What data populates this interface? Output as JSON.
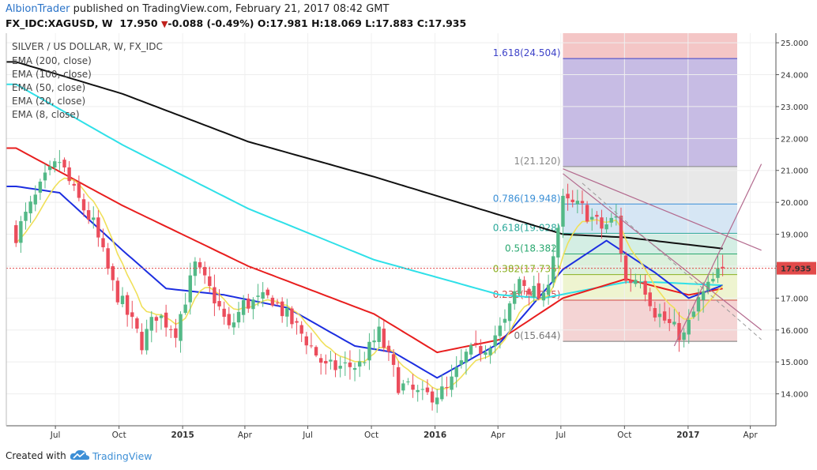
{
  "header": {
    "author": "AlbionTrader",
    "published_text": " published on TradingView.com, February 21, 2017 08:42 GMT",
    "symbol": "FX_IDC:XAGUSD, W",
    "last": "17.950",
    "change_arrow": "▼",
    "change": "-0.088 (-0.49%)",
    "o_label": "O:",
    "o": "17.981",
    "h_label": "H:",
    "h": "18.069",
    "l_label": "L:",
    "l": "17.883",
    "c_label": "C:",
    "c": "17.935"
  },
  "footer": {
    "created_with": "Created with",
    "brand": "TradingView"
  },
  "colors": {
    "up": "#53b987",
    "down": "#eb4d5c",
    "ema200": "#111111",
    "ema100": "#2fe0e8",
    "ema50": "#e81e1e",
    "ema20": "#1c2ee0",
    "ema8": "#f0e05a",
    "trend": "#b36a8e",
    "price_tag": "#e24a4a"
  },
  "chart_data": {
    "type": "candlestick",
    "title": "SILVER / US DOLLAR, W, FX_IDC",
    "legend": [
      "EMA (200, close)",
      "EMA (100, close)",
      "EMA (50, close)",
      "EMA (20, close)",
      "EMA (8, close)"
    ],
    "x_ticks": [
      "Jul",
      "Oct",
      "2015",
      "Apr",
      "Jul",
      "Oct",
      "2016",
      "Apr",
      "Jul",
      "Oct",
      "2017",
      "Apr"
    ],
    "y_ticks": [
      "14.000",
      "15.000",
      "16.000",
      "17.000",
      "18.000",
      "19.000",
      "20.000",
      "21.000",
      "22.000",
      "23.000",
      "24.000",
      "25.000"
    ],
    "ylim": [
      13.0,
      25.3
    ],
    "last_price": "17.935",
    "price_knots": [
      [
        "2014-05-05",
        19.0
      ],
      [
        "2014-06-16",
        20.7
      ],
      [
        "2014-07-07",
        21.3
      ],
      [
        "2014-07-28",
        20.3
      ],
      [
        "2014-08-25",
        19.3
      ],
      [
        "2014-09-22",
        17.4
      ],
      [
        "2014-11-03",
        15.6
      ],
      [
        "2014-11-24",
        16.5
      ],
      [
        "2014-12-22",
        16.0
      ],
      [
        "2015-01-19",
        18.0
      ],
      [
        "2015-02-16",
        17.0
      ],
      [
        "2015-03-09",
        16.0
      ],
      [
        "2015-03-30",
        16.8
      ],
      [
        "2015-05-11",
        17.0
      ],
      [
        "2015-05-25",
        16.6
      ],
      [
        "2015-06-29",
        15.7
      ],
      [
        "2015-07-27",
        14.8
      ],
      [
        "2015-09-14",
        14.9
      ],
      [
        "2015-10-12",
        15.9
      ],
      [
        "2015-11-09",
        14.3
      ],
      [
        "2015-12-14",
        13.9
      ],
      [
        "2016-01-18",
        14.1
      ],
      [
        "2016-02-15",
        15.2
      ],
      [
        "2016-03-14",
        15.5
      ],
      [
        "2016-04-11",
        16.2
      ],
      [
        "2016-05-02",
        17.6
      ],
      [
        "2016-06-06",
        16.9
      ],
      [
        "2016-07-04",
        20.0
      ],
      [
        "2016-08-01",
        19.8
      ],
      [
        "2016-08-29",
        19.2
      ],
      [
        "2016-09-19",
        19.5
      ],
      [
        "2016-10-03",
        17.5
      ],
      [
        "2016-10-24",
        17.7
      ],
      [
        "2016-11-14",
        16.6
      ],
      [
        "2016-12-12",
        16.0
      ],
      [
        "2016-12-26",
        15.8
      ],
      [
        "2017-01-16",
        16.9
      ],
      [
        "2017-02-20",
        17.95
      ]
    ],
    "ema_knots": {
      "ema200": [
        [
          "2014-05-05",
          24.4
        ],
        [
          "2014-10-06",
          23.4
        ],
        [
          "2015-04-06",
          21.9
        ],
        [
          "2015-10-05",
          20.8
        ],
        [
          "2016-04-04",
          19.6
        ],
        [
          "2016-07-04",
          19.0
        ],
        [
          "2016-10-03",
          18.9
        ],
        [
          "2017-02-20",
          18.55
        ]
      ],
      "ema100": [
        [
          "2014-05-05",
          23.7
        ],
        [
          "2014-10-06",
          21.8
        ],
        [
          "2015-04-06",
          19.8
        ],
        [
          "2015-10-05",
          18.2
        ],
        [
          "2016-04-04",
          17.1
        ],
        [
          "2016-06-06",
          17.0
        ],
        [
          "2016-10-03",
          17.5
        ],
        [
          "2016-11-14",
          17.5
        ],
        [
          "2017-02-20",
          17.4
        ]
      ],
      "ema50": [
        [
          "2014-05-05",
          21.7
        ],
        [
          "2014-10-06",
          19.9
        ],
        [
          "2015-04-06",
          18.0
        ],
        [
          "2015-10-05",
          16.5
        ],
        [
          "2016-01-04",
          15.3
        ],
        [
          "2016-04-04",
          15.7
        ],
        [
          "2016-07-04",
          17.0
        ],
        [
          "2016-10-03",
          17.6
        ],
        [
          "2017-01-02",
          17.1
        ],
        [
          "2017-02-20",
          17.3
        ]
      ],
      "ema20": [
        [
          "2014-05-05",
          20.5
        ],
        [
          "2014-07-07",
          20.3
        ],
        [
          "2014-10-06",
          18.5
        ],
        [
          "2014-12-08",
          17.3
        ],
        [
          "2015-03-02",
          17.1
        ],
        [
          "2015-06-01",
          16.7
        ],
        [
          "2015-09-07",
          15.5
        ],
        [
          "2015-11-02",
          15.3
        ],
        [
          "2016-01-04",
          14.5
        ],
        [
          "2016-04-04",
          15.6
        ],
        [
          "2016-07-04",
          17.9
        ],
        [
          "2016-09-05",
          18.8
        ],
        [
          "2016-11-14",
          17.8
        ],
        [
          "2017-01-02",
          17.0
        ],
        [
          "2017-02-20",
          17.4
        ]
      ]
    },
    "fibonacci": [
      {
        "ratio": "1.618",
        "price": 24.504,
        "label": "1.618(24.504)",
        "color": "#3d42c8"
      },
      {
        "ratio": "1",
        "price": 21.12,
        "label": "1(21.120)",
        "color": "#888888"
      },
      {
        "ratio": "0.786",
        "price": 19.948,
        "label": "0.786(19.948)",
        "color": "#3a8fd6"
      },
      {
        "ratio": "0.618",
        "price": 19.028,
        "label": "0.618(19.028)",
        "color": "#2aa89a"
      },
      {
        "ratio": "0.5",
        "price": 18.382,
        "label": "0.5(18.382)",
        "color": "#2aa870"
      },
      {
        "ratio": "0.382",
        "price": 17.736,
        "label": "0.382(17.736)",
        "color": "#8ab020"
      },
      {
        "ratio": "0.236",
        "price": 16.935,
        "label": "0.236(16.935)",
        "color": "#d24a4a"
      },
      {
        "ratio": "0",
        "price": 15.644,
        "label": "0(15.644)",
        "color": "#777777"
      }
    ],
    "fib_zones": [
      {
        "from": 21.12,
        "to": 25.3,
        "color": "#f4c6c6"
      },
      {
        "from": 19.948,
        "to": 21.12,
        "color": "#e8e8e8"
      },
      {
        "from": 19.028,
        "to": 19.948,
        "color": "#d6e6f4"
      },
      {
        "from": 18.382,
        "to": 19.028,
        "color": "#d4eee4"
      },
      {
        "from": 17.736,
        "to": 18.382,
        "color": "#dcf0dc"
      },
      {
        "from": 16.935,
        "to": 17.736,
        "color": "#eef4d0"
      },
      {
        "from": 15.644,
        "to": 16.935,
        "color": "#f4d4d4"
      }
    ],
    "fib_overlay": {
      "from": 21.12,
      "to": 24.504,
      "color": "#b8b8ee"
    },
    "fib_range": [
      "2016-07-04",
      "2017-03-13"
    ],
    "trendlines": [
      {
        "points": [
          [
            "2016-07-04",
            21.05
          ],
          [
            "2017-04-17",
            18.5
          ]
        ],
        "style": "solid"
      },
      {
        "points": [
          [
            "2016-07-04",
            20.9
          ],
          [
            "2017-04-17",
            16.0
          ]
        ],
        "style": "solid"
      },
      {
        "points": [
          [
            "2016-08-01",
            20.6
          ],
          [
            "2017-04-17",
            15.7
          ]
        ],
        "style": "dashed"
      },
      {
        "points": [
          [
            "2016-12-12",
            15.5
          ],
          [
            "2017-04-17",
            21.2
          ]
        ],
        "style": "solid"
      }
    ]
  }
}
